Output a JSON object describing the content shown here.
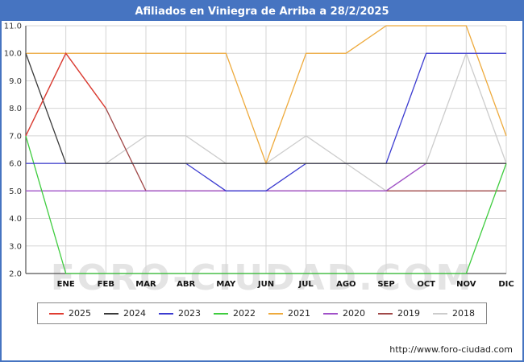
{
  "title_bar": {
    "title": "Afiliados en Viniegra de Arriba a 28/2/2025"
  },
  "watermark": "FORO-CIUDAD.COM",
  "footer": {
    "url": "http://www.foro-ciudad.com"
  },
  "chart_data": {
    "type": "line",
    "title": "Afiliados en Viniegra de Arriba a 28/2/2025",
    "x_labels": [
      "ENE",
      "FEB",
      "MAR",
      "ABR",
      "MAY",
      "JUN",
      "JUL",
      "AGO",
      "SEP",
      "OCT",
      "NOV",
      "DIC"
    ],
    "ylim": [
      2.0,
      11.0
    ],
    "y_ticks": [
      11.0,
      10.0,
      9.0,
      8.0,
      7.0,
      6.0,
      5.0,
      4.0,
      3.0,
      2.0
    ],
    "grid": true,
    "legend_position": "bottom",
    "x_starts_at_left_axis": true,
    "series": [
      {
        "name": "2025",
        "color": "#e03c31",
        "values": [
          7,
          10,
          8
        ]
      },
      {
        "name": "2024",
        "color": "#3a3a3a",
        "values": [
          10,
          6,
          6,
          6,
          6,
          6,
          6,
          6,
          6,
          6,
          6,
          6,
          6
        ]
      },
      {
        "name": "2023",
        "color": "#3b3bd0",
        "values": [
          6,
          6,
          6,
          6,
          6,
          5,
          5,
          6,
          6,
          6,
          10,
          10,
          10
        ]
      },
      {
        "name": "2022",
        "color": "#3ecc3e",
        "values": [
          7,
          2,
          2,
          2,
          2,
          2,
          2,
          2,
          2,
          2,
          2,
          2,
          6
        ]
      },
      {
        "name": "2021",
        "color": "#eeaa3c",
        "values": [
          10,
          10,
          10,
          10,
          10,
          10,
          6,
          10,
          10,
          11,
          11,
          11,
          7
        ]
      },
      {
        "name": "2020",
        "color": "#a050c8",
        "values": [
          5,
          5,
          5,
          5,
          5,
          5,
          5,
          5,
          5,
          5,
          6,
          6,
          6
        ]
      },
      {
        "name": "2019",
        "color": "#a04848",
        "values": [
          7,
          10,
          8,
          5,
          5,
          5,
          5,
          5,
          5,
          5,
          5,
          5,
          5
        ]
      },
      {
        "name": "2018",
        "color": "#cccccc",
        "values": [
          6,
          6,
          6,
          7,
          7,
          6,
          6,
          7,
          6,
          5,
          6,
          10,
          6
        ]
      }
    ]
  }
}
